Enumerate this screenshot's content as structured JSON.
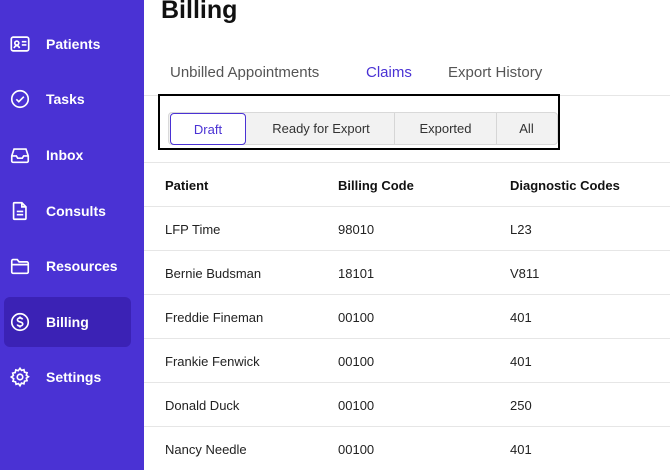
{
  "sidebar": {
    "items": [
      {
        "label": "Patients",
        "icon": "id-card-icon"
      },
      {
        "label": "Tasks",
        "icon": "check-circle-icon"
      },
      {
        "label": "Inbox",
        "icon": "inbox-tray-icon"
      },
      {
        "label": "Consults",
        "icon": "document-icon"
      },
      {
        "label": "Resources",
        "icon": "folder-icon"
      },
      {
        "label": "Billing",
        "icon": "dollar-circle-icon",
        "active": true
      },
      {
        "label": "Settings",
        "icon": "gear-icon"
      }
    ]
  },
  "page": {
    "title": "Billing"
  },
  "tabs": [
    {
      "label": "Unbilled Appointments"
    },
    {
      "label": "Claims",
      "active": true
    },
    {
      "label": "Export History"
    }
  ],
  "filters": [
    {
      "label": "Draft",
      "active": true
    },
    {
      "label": "Ready for Export"
    },
    {
      "label": "Exported"
    },
    {
      "label": "All"
    }
  ],
  "table": {
    "columns": [
      "Patient",
      "Billing Code",
      "Diagnostic Codes"
    ],
    "rows": [
      {
        "patient": "LFP Time",
        "billing_code": "98010",
        "diagnostic_codes": "L23"
      },
      {
        "patient": "Bernie Budsman",
        "billing_code": "18101",
        "diagnostic_codes": "V811"
      },
      {
        "patient": "Freddie Fineman",
        "billing_code": "00100",
        "diagnostic_codes": "401"
      },
      {
        "patient": "Frankie Fenwick",
        "billing_code": "00100",
        "diagnostic_codes": "401"
      },
      {
        "patient": "Donald Duck",
        "billing_code": "00100",
        "diagnostic_codes": "250"
      },
      {
        "patient": "Nancy Needle",
        "billing_code": "00100",
        "diagnostic_codes": "401"
      }
    ]
  },
  "colors": {
    "accent": "#4a32d4",
    "sidebar_active": "#3b22b5"
  }
}
